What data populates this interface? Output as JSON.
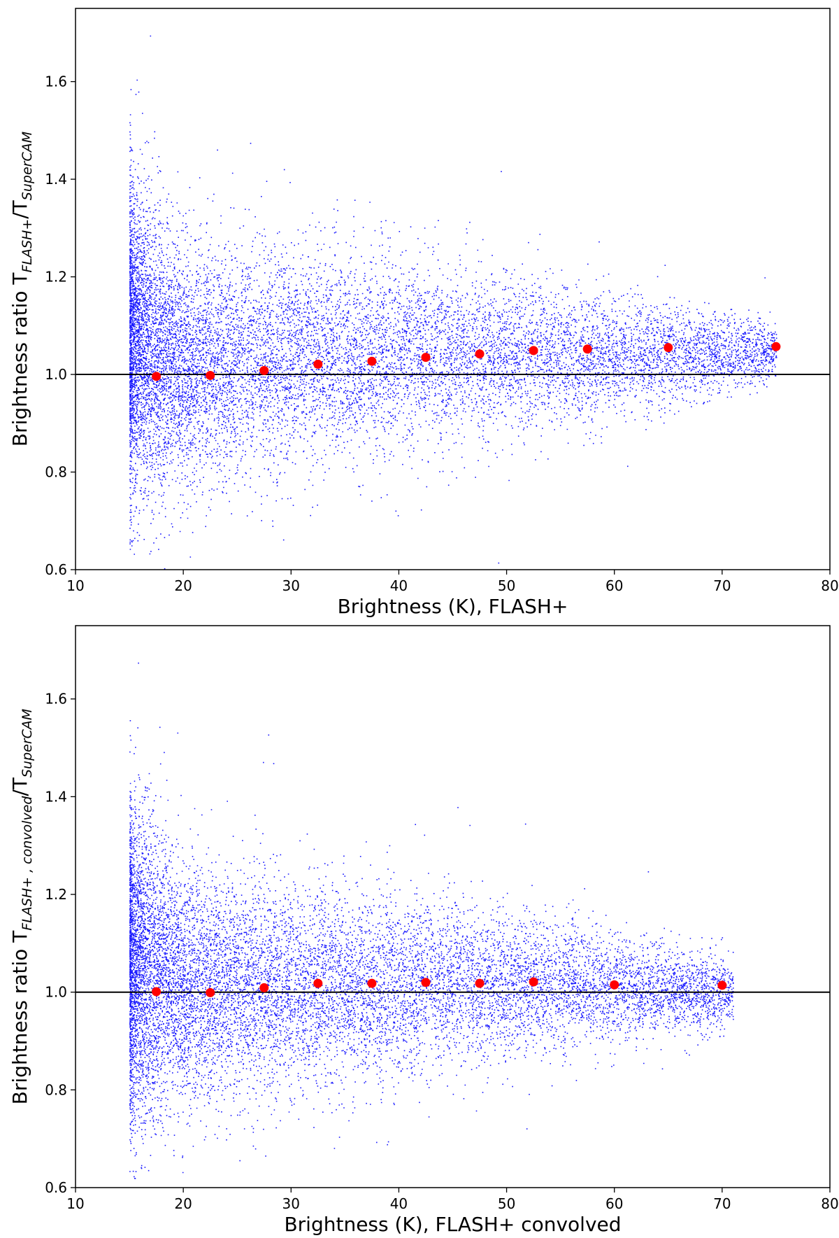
{
  "chart_data": [
    {
      "type": "scatter",
      "title": "",
      "xlabel": "Brightness (K), FLASH+",
      "ylabel": {
        "prefix": "Brightness ratio T",
        "numerator_sub": "FLASH+",
        "separator": "/T",
        "denominator_sub": "SuperCAM"
      },
      "xlim": [
        10,
        80
      ],
      "ylim": [
        0.6,
        1.75
      ],
      "xticks": [
        "10",
        "20",
        "30",
        "40",
        "50",
        "60",
        "70",
        "80"
      ],
      "yticks": [
        "0.6",
        "0.8",
        "1.0",
        "1.2",
        "1.4",
        "1.6"
      ],
      "grid": false,
      "reference_line": {
        "y": 1.0,
        "color": "#000000"
      },
      "series": [
        {
          "kind": "scatter-cloud",
          "color": "#0000ff",
          "x_start": 15,
          "envelope": [
            {
              "x": 15,
              "low": 0.7,
              "high": 1.47
            },
            {
              "x": 20,
              "low": 0.73,
              "high": 1.3
            },
            {
              "x": 30,
              "low": 0.78,
              "high": 1.3
            },
            {
              "x": 40,
              "low": 0.82,
              "high": 1.27
            },
            {
              "x": 50,
              "low": 0.86,
              "high": 1.23
            },
            {
              "x": 60,
              "low": 0.9,
              "high": 1.18
            },
            {
              "x": 70,
              "low": 0.95,
              "high": 1.14
            },
            {
              "x": 75,
              "low": 0.98,
              "high": 1.12
            }
          ]
        },
        {
          "kind": "binned-mean",
          "color": "#ff0000",
          "x": [
            17.5,
            22.5,
            27.5,
            32.5,
            37.5,
            42.5,
            47.5,
            52.5,
            57.5,
            65,
            75
          ],
          "y": [
            0.996,
            0.998,
            1.008,
            1.021,
            1.027,
            1.035,
            1.042,
            1.049,
            1.052,
            1.055,
            1.057
          ]
        }
      ]
    },
    {
      "type": "scatter",
      "title": "",
      "xlabel": "Brightness (K), FLASH+ convolved",
      "ylabel": {
        "prefix": "Brightness ratio T",
        "numerator_sub": "FLASH+ , convolved",
        "separator": "/T",
        "denominator_sub": "SuperCAM"
      },
      "xlim": [
        10,
        80
      ],
      "ylim": [
        0.6,
        1.75
      ],
      "xticks": [
        "10",
        "20",
        "30",
        "40",
        "50",
        "60",
        "70",
        "80"
      ],
      "yticks": [
        "0.6",
        "0.8",
        "1.0",
        "1.2",
        "1.4",
        "1.6"
      ],
      "grid": false,
      "reference_line": {
        "y": 1.0,
        "color": "#000000"
      },
      "series": [
        {
          "kind": "scatter-cloud",
          "color": "#0000ff",
          "x_start": 15,
          "envelope": [
            {
              "x": 15,
              "low": 0.68,
              "high": 1.45
            },
            {
              "x": 20,
              "low": 0.72,
              "high": 1.3
            },
            {
              "x": 30,
              "low": 0.76,
              "high": 1.26
            },
            {
              "x": 40,
              "low": 0.8,
              "high": 1.23
            },
            {
              "x": 50,
              "low": 0.84,
              "high": 1.2
            },
            {
              "x": 60,
              "low": 0.88,
              "high": 1.14
            },
            {
              "x": 70,
              "low": 0.92,
              "high": 1.08
            },
            {
              "x": 71,
              "low": 0.93,
              "high": 1.07
            }
          ]
        },
        {
          "kind": "binned-mean",
          "color": "#ff0000",
          "x": [
            17.5,
            22.5,
            27.5,
            32.5,
            37.5,
            42.5,
            47.5,
            52.5,
            60,
            70
          ],
          "y": [
            1.001,
            0.999,
            1.009,
            1.018,
            1.018,
            1.02,
            1.018,
            1.021,
            1.015,
            1.014
          ]
        }
      ]
    }
  ]
}
